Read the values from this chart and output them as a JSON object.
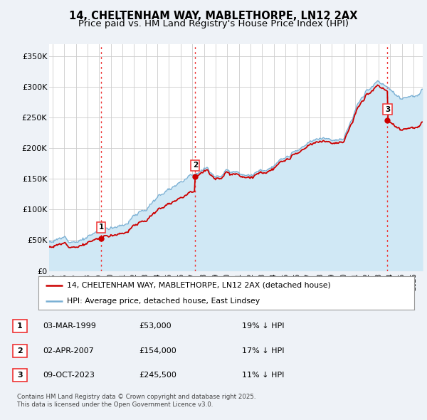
{
  "title": "14, CHELTENHAM WAY, MABLETHORPE, LN12 2AX",
  "subtitle": "Price paid vs. HM Land Registry's House Price Index (HPI)",
  "yticks": [
    0,
    50000,
    100000,
    150000,
    200000,
    250000,
    300000,
    350000
  ],
  "ytick_labels": [
    "£0",
    "£50K",
    "£100K",
    "£150K",
    "£200K",
    "£250K",
    "£300K",
    "£350K"
  ],
  "ylim": [
    0,
    370000
  ],
  "xlim_start": 1994.7,
  "xlim_end": 2026.8,
  "sale_dates": [
    1999.17,
    2007.25,
    2023.77
  ],
  "sale_prices": [
    53000,
    154000,
    245500
  ],
  "sale_labels": [
    "1",
    "2",
    "3"
  ],
  "vline_color": "#ee3333",
  "vline_style": ":",
  "red_line_color": "#cc0000",
  "blue_line_color": "#7ab0d4",
  "blue_fill_color": "#d0e8f5",
  "background_color": "#eef2f7",
  "plot_bg_color": "#ffffff",
  "grid_color": "#cccccc",
  "legend_text_1": "14, CHELTENHAM WAY, MABLETHORPE, LN12 2AX (detached house)",
  "legend_text_2": "HPI: Average price, detached house, East Lindsey",
  "sale1_date_str": "03-MAR-1999",
  "sale1_price_str": "£53,000",
  "sale1_hpi_str": "19% ↓ HPI",
  "sale2_date_str": "02-APR-2007",
  "sale2_price_str": "£154,000",
  "sale2_hpi_str": "17% ↓ HPI",
  "sale3_date_str": "09-OCT-2023",
  "sale3_price_str": "£245,500",
  "sale3_hpi_str": "11% ↓ HPI",
  "footer_text": "Contains HM Land Registry data © Crown copyright and database right 2025.\nThis data is licensed under the Open Government Licence v3.0.",
  "title_fontsize": 10.5,
  "subtitle_fontsize": 9.5
}
